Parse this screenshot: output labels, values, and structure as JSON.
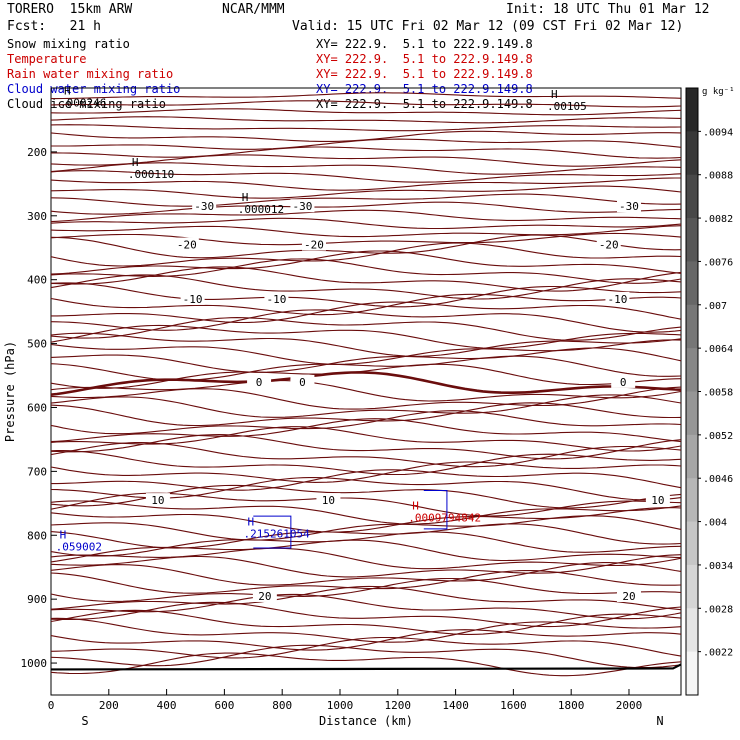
{
  "header": {
    "model": "TORERO  15km ARW",
    "center": "NCAR/MMM",
    "init": "Init: 18 UTC Thu 01 Mar 12",
    "fcst": "Fcst:   21 h",
    "valid": "Valid: 15 UTC Fri 02 Mar 12 (09 CST Fri 02 Mar 12)"
  },
  "fields": [
    {
      "name": "Snow mixing ratio",
      "xy": "XY= 222.9.  5.1 to 222.9.149.8",
      "color": "#000000"
    },
    {
      "name": "Temperature",
      "xy": "XY= 222.9.  5.1 to 222.9.149.8",
      "color": "#cc0000"
    },
    {
      "name": "Rain water mixing ratio",
      "xy": "XY= 222.9.  5.1 to 222.9.149.8",
      "color": "#cc0000"
    },
    {
      "name": "Cloud water mixing ratio",
      "xy": "XY= 222.9.  5.1 to 222.9.149.8",
      "color": "#0000cc"
    },
    {
      "name": "Cloud ice mixing ratio",
      "xy": "XY= 222.9.  5.1 to 222.9.149.8",
      "color": "#000000"
    }
  ],
  "colors": {
    "isotherm": "#6a0d0d",
    "zero_isotherm": "#6a0d0d",
    "cloud_water": "#0000cc",
    "rain_water": "#cc0000",
    "terrain": "#000000"
  },
  "chart_data": {
    "type": "contour",
    "xlabel": "Distance (km)",
    "ylabel": "Pressure (hPa)",
    "xlim": [
      0,
      2180
    ],
    "ylim": [
      1050,
      100
    ],
    "x_ticks": [
      0,
      200,
      400,
      600,
      800,
      1000,
      1200,
      1400,
      1600,
      1800,
      2000
    ],
    "y_ticks": [
      200,
      300,
      400,
      500,
      600,
      700,
      800,
      900,
      1000
    ],
    "x_end_labels": {
      "left": "S",
      "right": "N"
    },
    "colorbar": {
      "unit": "g kg⁻¹",
      "ticks": [
        ".0094",
        ".0088",
        ".0082",
        ".0076",
        ".007",
        ".0064",
        ".0058",
        ".0052",
        ".0046",
        ".004",
        ".0034",
        ".0028",
        ".0022"
      ]
    },
    "isotherm_labels": [
      {
        "label": "-30",
        "pressure": 285,
        "x": [
          530,
          870,
          2000
        ]
      },
      {
        "label": "-20",
        "pressure": 345,
        "x": [
          470,
          910,
          1930
        ]
      },
      {
        "label": "-10",
        "pressure": 430,
        "x": [
          490,
          780,
          1960
        ]
      },
      {
        "label": "0",
        "pressure": 560,
        "x": [
          720,
          870,
          1980
        ]
      },
      {
        "label": "10",
        "pressure": 745,
        "x": [
          370,
          960,
          2100
        ]
      },
      {
        "label": "20",
        "pressure": 895,
        "x": [
          740,
          2000
        ]
      }
    ],
    "extrema": [
      {
        "symbol": "H",
        "value": ".000110",
        "x": 280,
        "pressure": 222,
        "field": "snow"
      },
      {
        "symbol": "H",
        "value": ".000012",
        "x": 660,
        "pressure": 277,
        "field": "snow"
      },
      {
        "symbol": "H",
        "value": ".000246",
        "x": 45,
        "pressure": 110,
        "field": "snow"
      },
      {
        "symbol": "H",
        "value": ".00105",
        "x": 1730,
        "pressure": 116,
        "field": "snow"
      },
      {
        "symbol": "H",
        "value": ".059002",
        "x": 30,
        "pressure": 805,
        "field": "cloud_water"
      },
      {
        "symbol": "H",
        "value": ".215261054",
        "x": 680,
        "pressure": 785,
        "field": "cloud_water"
      },
      {
        "symbol": "H",
        "value": ".0009794842",
        "x": 1250,
        "pressure": 760,
        "field": "rain_water"
      }
    ]
  }
}
